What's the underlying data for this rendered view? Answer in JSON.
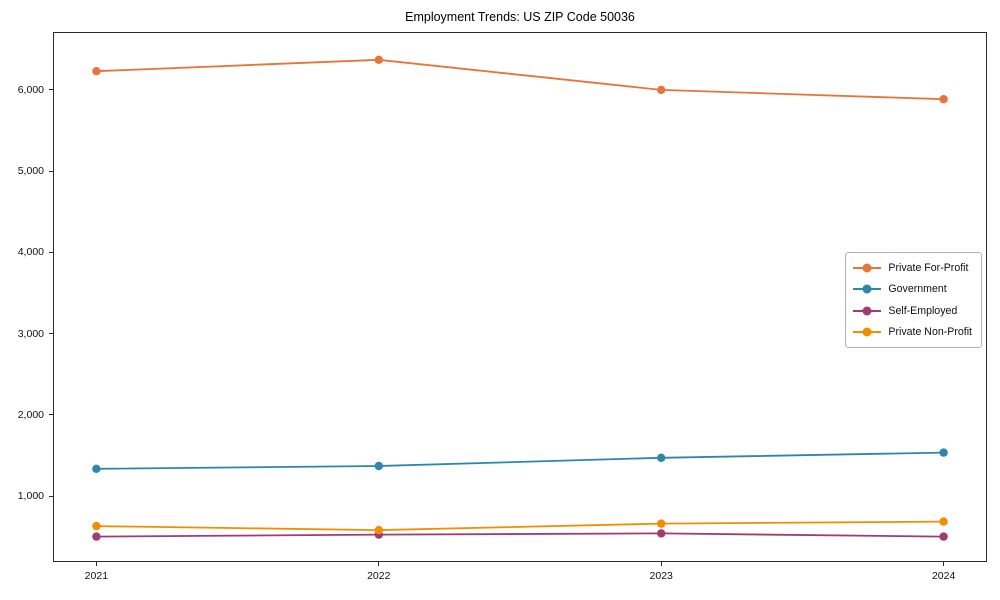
{
  "chart_data": {
    "type": "line",
    "title": "Employment Trends: US ZIP Code 50036",
    "xlabel": "",
    "ylabel": "",
    "x": [
      2021,
      2022,
      2023,
      2024
    ],
    "x_tick_labels": [
      "2021",
      "2022",
      "2023",
      "2024"
    ],
    "series": [
      {
        "name": "Private For-Profit",
        "color": "#E8743B",
        "values": [
          6230,
          6370,
          6000,
          5885
        ]
      },
      {
        "name": "Government",
        "color": "#2E86AB",
        "values": [
          1335,
          1370,
          1470,
          1535
        ]
      },
      {
        "name": "Self-Employed",
        "color": "#A23B72",
        "values": [
          500,
          525,
          540,
          500
        ]
      },
      {
        "name": "Private Non-Profit",
        "color": "#F18F01",
        "values": [
          630,
          580,
          660,
          685
        ]
      }
    ],
    "xlim": [
      2020.85,
      2024.15
    ],
    "ylim": [
      200,
      6700
    ],
    "yticks": [
      1000,
      2000,
      3000,
      4000,
      5000,
      6000
    ],
    "ytick_labels": [
      "1,000",
      "2,000",
      "3,000",
      "4,000",
      "5,000",
      "6,000"
    ],
    "grid": false,
    "marker": "circle",
    "legend": {
      "position": "center-right",
      "entries": [
        "Private For-Profit",
        "Government",
        "Self-Employed",
        "Private Non-Profit"
      ]
    }
  }
}
